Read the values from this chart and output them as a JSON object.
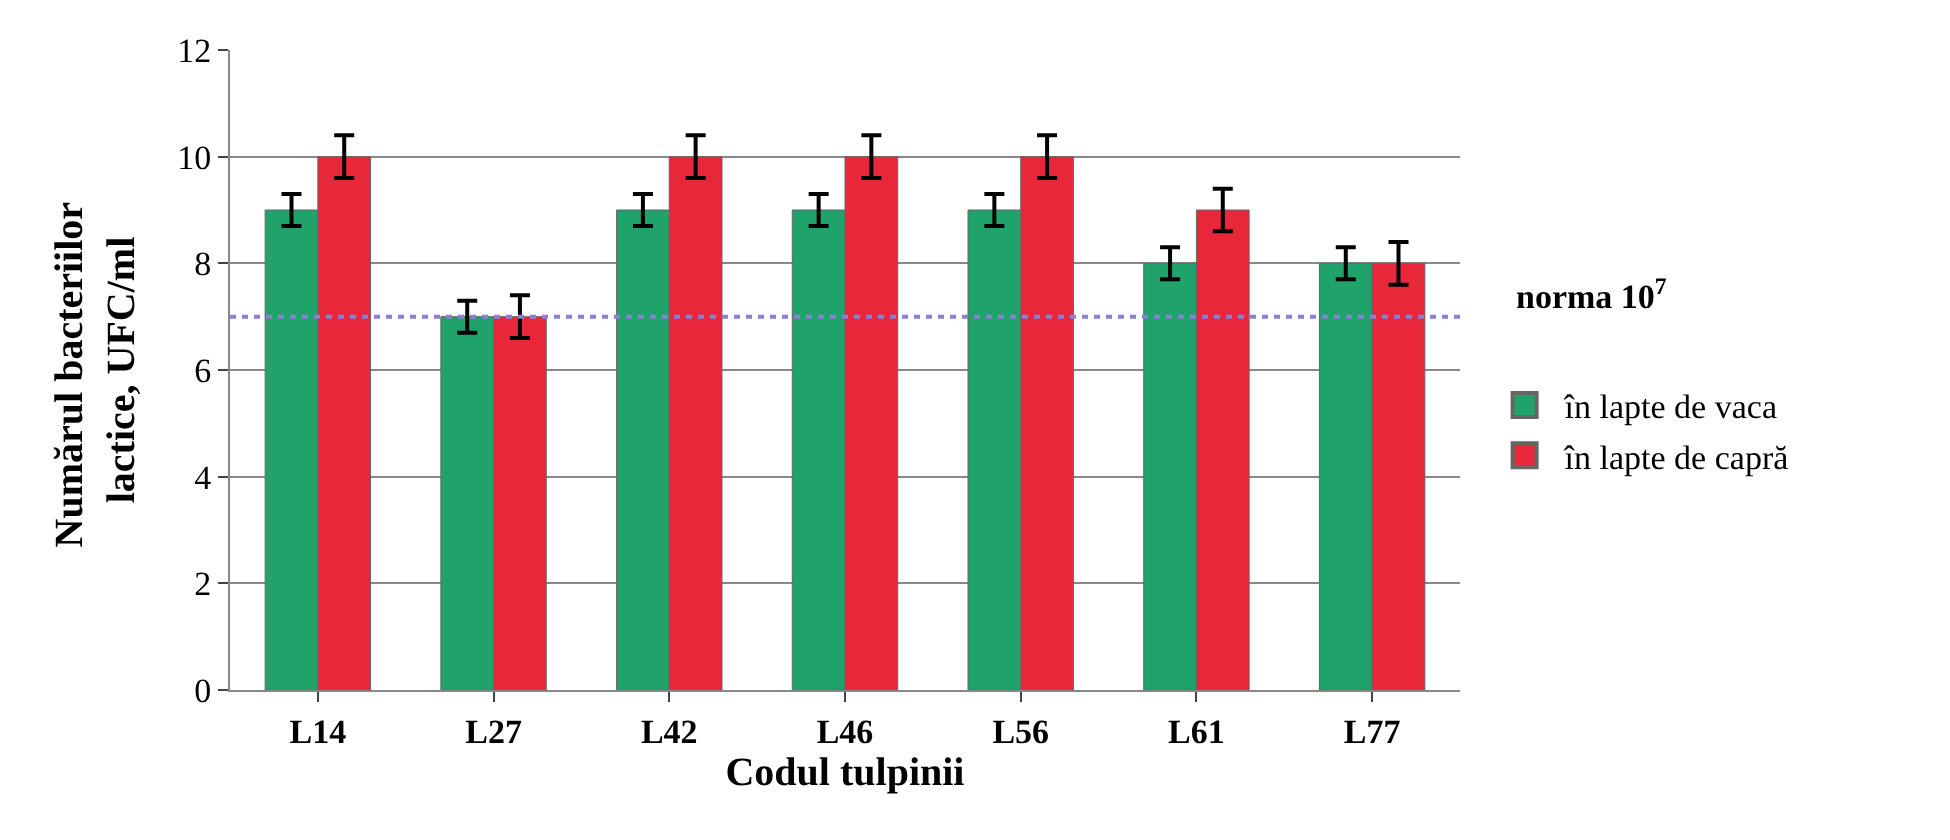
{
  "chart_data": {
    "type": "bar",
    "xlabel": "Codul tulpinii",
    "ylabel": "Numărul bacteriilor lactice, UFC/ml",
    "categories": [
      "L14",
      "L27",
      "L42",
      "L46",
      "L56",
      "L61",
      "L77"
    ],
    "series": [
      {
        "name": "în lapte de vaca",
        "color": "#1fa36a",
        "values": [
          9,
          7,
          9,
          9,
          9,
          8,
          8
        ],
        "errors": [
          0.3,
          0.3,
          0.3,
          0.3,
          0.3,
          0.3,
          0.3
        ]
      },
      {
        "name": "în lapte de capră",
        "color": "#e8283a",
        "values": [
          10,
          7,
          10,
          10,
          10,
          9,
          8
        ],
        "errors": [
          0.4,
          0.4,
          0.4,
          0.4,
          0.4,
          0.4,
          0.4
        ]
      }
    ],
    "ylim": [
      0,
      12
    ],
    "yticks": [
      0,
      2,
      4,
      6,
      8,
      10,
      12
    ],
    "grid": "y",
    "legend": "right",
    "ref_lines": [
      {
        "axis": "y",
        "value": 7,
        "label": "norma 10$^{7}$",
        "color": "#8c7fd8",
        "line_style": "dotted"
      }
    ]
  }
}
